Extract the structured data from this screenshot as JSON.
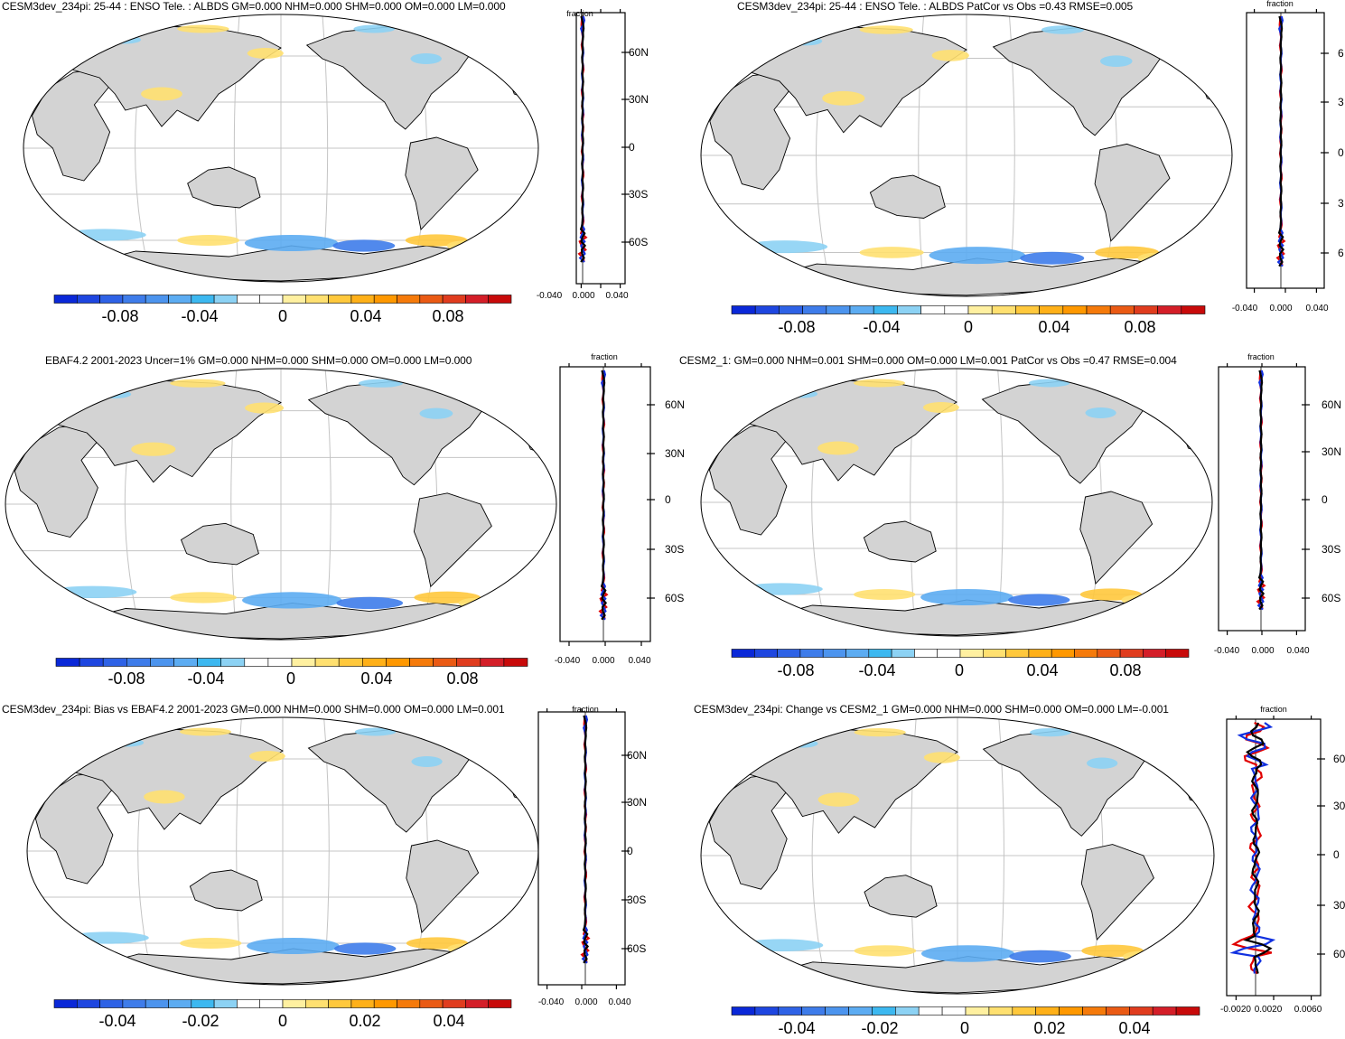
{
  "colorbar_colors": [
    "#0a28d8",
    "#1e46e0",
    "#2e62e6",
    "#3e7cea",
    "#4c94ee",
    "#5cacf2",
    "#3cb8f0",
    "#8cd2f4",
    "#ffffff",
    "#ffffff",
    "#fff0a0",
    "#ffe070",
    "#ffc83c",
    "#ffb018",
    "#ff9800",
    "#f57a0a",
    "#ea5a14",
    "#e03c1e",
    "#d41e28",
    "#c80a0a"
  ],
  "colors": {
    "land": "#d3d3d3",
    "grid": "#c4c4c4",
    "outline": "#000000",
    "mean_profile": "#000000",
    "nh_profile": "#1030e0",
    "sh_profile": "#e00000"
  },
  "panels": [
    {
      "id": "p1",
      "title": "CESM3dev_234pi: 25-44 : ENSO Tele. : ALBDS GM=0.000 NHM=0.000 SHM=0.000 OM=0.000 LM=0.000",
      "profile": {
        "top_label": "fraction",
        "x_ticks": [
          "-0.040",
          "0.000",
          "0.040"
        ],
        "lat_ticks": [
          "60N",
          "30N",
          "0",
          "30S",
          "60S"
        ]
      },
      "colorbar_labels": [
        "-0.08",
        "-0.04",
        "0",
        "0.04",
        "0.08"
      ]
    },
    {
      "id": "p2",
      "title": "CESM3dev_234pi: 25-44 : ENSO Tele. : ALBDS PatCor vs Obs =0.43 RMSE=0.005",
      "profile": {
        "top_label": "fraction",
        "x_ticks": [
          "-0.040",
          "0.000",
          "0.040"
        ],
        "lat_ticks": [
          "6",
          "3",
          "0",
          "3",
          "6"
        ]
      },
      "colorbar_labels": [
        "-0.08",
        "-0.04",
        "0",
        "0.04",
        "0.08"
      ]
    },
    {
      "id": "p3",
      "title": "EBAF4.2 2001-2023 Uncer=1% GM=0.000 NHM=0.000 SHM=0.000 OM=0.000 LM=0.000",
      "profile": {
        "top_label": "fraction",
        "x_ticks": [
          "-0.040",
          "0.000",
          "0.040"
        ],
        "lat_ticks": [
          "60N",
          "30N",
          "0",
          "30S",
          "60S"
        ]
      },
      "colorbar_labels": [
        "-0.08",
        "-0.04",
        "0",
        "0.04",
        "0.08"
      ]
    },
    {
      "id": "p4",
      "title": "CESM2_1: GM=0.000 NHM=0.001 SHM=0.000 OM=0.000 LM=0.001 PatCor vs Obs =0.47 RMSE=0.004",
      "profile": {
        "top_label": "fraction",
        "x_ticks": [
          "-0.040",
          "0.000",
          "0.040"
        ],
        "lat_ticks": [
          "60N",
          "30N",
          "0",
          "30S",
          "60S"
        ]
      },
      "colorbar_labels": [
        "-0.08",
        "-0.04",
        "0",
        "0.04",
        "0.08"
      ]
    },
    {
      "id": "p5",
      "title": "CESM3dev_234pi: Bias vs EBAF4.2 2001-2023 GM=0.000 NHM=0.000 SHM=0.000 OM=0.000 LM=0.001",
      "profile": {
        "top_label": "fraction",
        "x_ticks": [
          "-0.040",
          "0.000",
          "0.040"
        ],
        "lat_ticks": [
          "60N",
          "30N",
          "0",
          "30S",
          "60S"
        ]
      },
      "colorbar_labels": [
        "-0.04",
        "-0.02",
        "0",
        "0.02",
        "0.04"
      ]
    },
    {
      "id": "p6",
      "title": "CESM3dev_234pi: Change vs CESM2_1 GM=0.000 NHM=0.000 SHM=0.000 OM=0.000 LM=-0.001",
      "profile": {
        "top_label": "fraction",
        "x_ticks": [
          "-0.0020",
          "0.0020",
          "0.0060"
        ],
        "lat_ticks": [
          "60",
          "30",
          "0",
          "30",
          "60"
        ]
      },
      "colorbar_labels": [
        "-0.04",
        "-0.02",
        "0",
        "0.02",
        "0.04"
      ]
    }
  ]
}
